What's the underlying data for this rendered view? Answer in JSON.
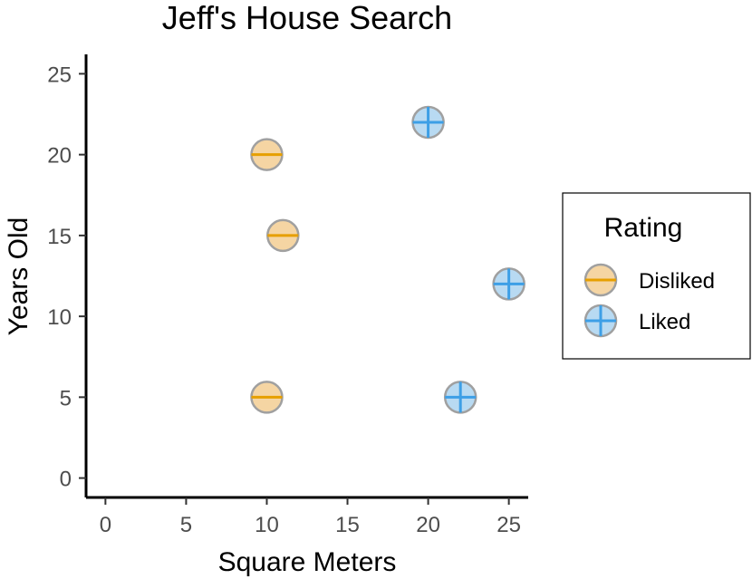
{
  "chart_data": {
    "type": "scatter",
    "title": "Jeff's House Search",
    "xlabel": "Square Meters",
    "ylabel": "Years Old",
    "xlim": [
      -1.2,
      26.2
    ],
    "ylim": [
      -1.2,
      26.2
    ],
    "x_ticks": [
      0,
      5,
      10,
      15,
      20,
      25
    ],
    "y_ticks": [
      0,
      5,
      10,
      15,
      20,
      25
    ],
    "x_tick_labels": [
      "0",
      "5",
      "10",
      "15",
      "20",
      "25"
    ],
    "y_tick_labels": [
      "0",
      "5",
      "10",
      "15",
      "20",
      "25"
    ],
    "grid": false,
    "legend": {
      "title": "Rating",
      "position": "right",
      "entries": [
        {
          "label": "Disliked",
          "fill": "#f5d5a3",
          "stroke_color": "#e69f00",
          "symbol": "minus"
        },
        {
          "label": "Liked",
          "fill": "#b8daf2",
          "stroke_color": "#3d9fe6",
          "symbol": "plus"
        }
      ]
    },
    "series": [
      {
        "name": "Disliked",
        "points": [
          {
            "x": 10,
            "y": 20
          },
          {
            "x": 11,
            "y": 15
          },
          {
            "x": 10,
            "y": 5
          }
        ]
      },
      {
        "name": "Liked",
        "points": [
          {
            "x": 20,
            "y": 22
          },
          {
            "x": 25,
            "y": 12
          },
          {
            "x": 22,
            "y": 5
          }
        ]
      }
    ]
  }
}
